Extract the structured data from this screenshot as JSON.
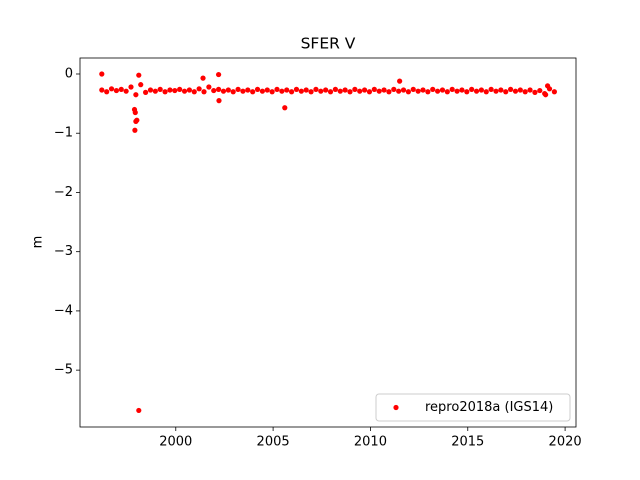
{
  "chart_data": {
    "type": "scatter",
    "title": "SFER V",
    "ylabel": "m",
    "xlim": [
      1995.08,
      2020.56
    ],
    "xticks": [
      2000,
      2005,
      2010,
      2015,
      2020
    ],
    "ylim": [
      -5.96,
      0.27
    ],
    "yticks": [
      0,
      {
        "value": -1,
        "label": "−1"
      },
      {
        "value": -2,
        "label": "−2"
      },
      {
        "value": -3,
        "label": "−3"
      },
      {
        "value": -4,
        "label": "−4"
      },
      {
        "value": -5,
        "label": "−5"
      }
    ],
    "legend": "lower right",
    "series": [
      {
        "name": "repro2018a (IGS14)",
        "color": "#ff0000",
        "x": [
          1996.2,
          1996.45,
          1996.7,
          1996.95,
          1997.2,
          1997.45,
          1997.7,
          1997.95,
          1998.2,
          1998.45,
          1998.7,
          1998.95,
          1999.2,
          1999.45,
          1999.7,
          1999.95,
          2000.2,
          2000.45,
          2000.7,
          2000.95,
          2001.2,
          2001.45,
          2001.7,
          2001.95,
          2002.2,
          2002.45,
          2002.7,
          2002.95,
          2003.2,
          2003.45,
          2003.7,
          2003.95,
          2004.2,
          2004.45,
          2004.7,
          2004.95,
          2005.2,
          2005.45,
          2005.7,
          2005.95,
          2006.2,
          2006.45,
          2006.7,
          2006.95,
          2007.2,
          2007.45,
          2007.7,
          2007.95,
          2008.2,
          2008.45,
          2008.7,
          2008.95,
          2009.2,
          2009.45,
          2009.7,
          2009.95,
          2010.2,
          2010.45,
          2010.7,
          2010.95,
          2011.2,
          2011.45,
          2011.7,
          2011.95,
          2012.2,
          2012.45,
          2012.7,
          2012.95,
          2013.2,
          2013.45,
          2013.7,
          2013.95,
          2014.2,
          2014.45,
          2014.7,
          2014.95,
          2015.2,
          2015.45,
          2015.7,
          2015.95,
          2016.2,
          2016.45,
          2016.7,
          2016.95,
          2017.2,
          2017.45,
          2017.7,
          2017.95,
          2018.2,
          2018.45,
          2018.7,
          2018.95,
          2019.2,
          2019.45,
          1996.2,
          1998.1,
          1997.9,
          1997.95,
          1998.0,
          1997.88,
          1997.92,
          1998.1,
          2001.4,
          2002.2,
          2002.22,
          2005.6,
          2011.5,
          2019.1,
          2019.0
        ],
        "values": [
          -0.27,
          -0.3,
          -0.25,
          -0.28,
          -0.26,
          -0.29,
          -0.22,
          -0.35,
          -0.18,
          -0.31,
          -0.27,
          -0.29,
          -0.26,
          -0.3,
          -0.27,
          -0.28,
          -0.26,
          -0.29,
          -0.27,
          -0.3,
          -0.25,
          -0.3,
          -0.22,
          -0.28,
          -0.26,
          -0.29,
          -0.27,
          -0.3,
          -0.26,
          -0.29,
          -0.27,
          -0.3,
          -0.26,
          -0.29,
          -0.27,
          -0.3,
          -0.26,
          -0.29,
          -0.27,
          -0.3,
          -0.26,
          -0.29,
          -0.27,
          -0.3,
          -0.26,
          -0.29,
          -0.27,
          -0.3,
          -0.26,
          -0.29,
          -0.27,
          -0.3,
          -0.26,
          -0.29,
          -0.27,
          -0.3,
          -0.26,
          -0.29,
          -0.27,
          -0.3,
          -0.26,
          -0.29,
          -0.27,
          -0.3,
          -0.26,
          -0.29,
          -0.27,
          -0.3,
          -0.26,
          -0.29,
          -0.27,
          -0.3,
          -0.26,
          -0.29,
          -0.27,
          -0.3,
          -0.26,
          -0.29,
          -0.27,
          -0.3,
          -0.26,
          -0.29,
          -0.27,
          -0.3,
          -0.26,
          -0.29,
          -0.27,
          -0.3,
          -0.27,
          -0.31,
          -0.28,
          -0.33,
          -0.25,
          -0.3,
          0.0,
          -0.02,
          -0.95,
          -0.8,
          -0.78,
          -0.6,
          -0.65,
          -5.68,
          -0.07,
          -0.01,
          -0.45,
          -0.57,
          -0.12,
          -0.2,
          -0.35
        ]
      }
    ]
  }
}
